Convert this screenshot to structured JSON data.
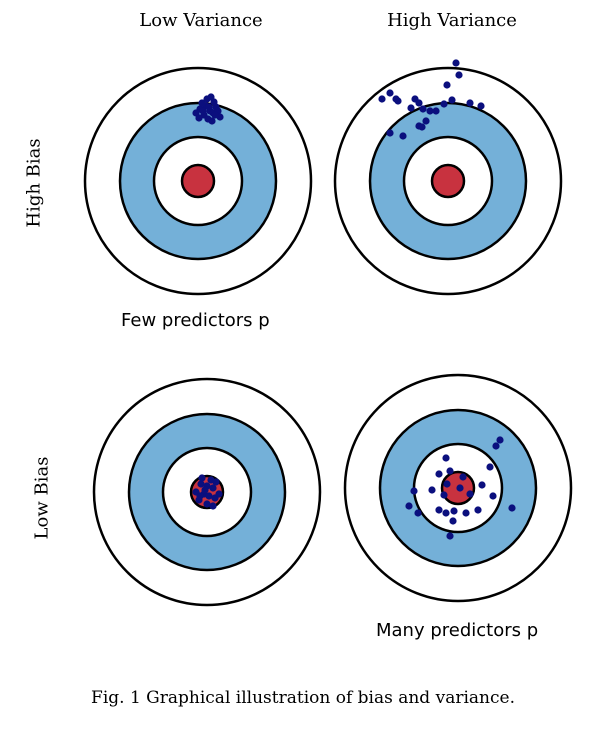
{
  "columns": {
    "left": "Low Variance",
    "right": "High Variance"
  },
  "rows": {
    "top": "High Bias",
    "bottom": "Low Bias"
  },
  "notes": {
    "few": "Few predictors p",
    "many": "Many predictors p"
  },
  "caption": "Fig. 1 Graphical illustration of bias and variance.",
  "colors": {
    "outer_ring": "#ffffff",
    "middle_ring": "#74b0d8",
    "inner_ring": "#ffffff",
    "bullseye": "#c8323f",
    "stroke": "#000000",
    "dots": "#0b0f7e"
  },
  "targets": [
    {
      "id": "high-bias-low-variance",
      "hits": [
        [
          8,
          -75
        ],
        [
          12,
          -70
        ],
        [
          2,
          -72
        ],
        [
          15,
          -68
        ],
        [
          6,
          -66
        ],
        [
          18,
          -74
        ],
        [
          10,
          -62
        ],
        [
          4,
          -78
        ],
        [
          14,
          -60
        ],
        [
          20,
          -70
        ],
        [
          -2,
          -68
        ],
        [
          9,
          -82
        ],
        [
          16,
          -79
        ],
        [
          1,
          -63
        ],
        [
          11,
          -74
        ],
        [
          22,
          -64
        ],
        [
          5,
          -70
        ],
        [
          17,
          -66
        ],
        [
          13,
          -84
        ]
      ]
    },
    {
      "id": "high-bias-high-variance",
      "hits": [
        [
          -50,
          -80
        ],
        [
          -52,
          -82
        ],
        [
          -58,
          -88
        ],
        [
          -66,
          -82
        ],
        [
          -33,
          -82
        ],
        [
          -29,
          -78
        ],
        [
          -37,
          -73
        ],
        [
          -25,
          -72
        ],
        [
          -18,
          -70
        ],
        [
          -12,
          -70
        ],
        [
          -22,
          -60
        ],
        [
          -29,
          -55
        ],
        [
          -58,
          -48
        ],
        [
          -45,
          -45
        ],
        [
          -26,
          -54
        ],
        [
          -4,
          -77
        ],
        [
          4,
          -81
        ],
        [
          22,
          -78
        ],
        [
          33,
          -75
        ],
        [
          -1,
          -96
        ],
        [
          8,
          -118
        ],
        [
          11,
          -106
        ]
      ]
    },
    {
      "id": "low-bias-low-variance",
      "hits": [
        [
          -6,
          -8
        ],
        [
          0,
          -6
        ],
        [
          6,
          -4
        ],
        [
          -3,
          2
        ],
        [
          2,
          4
        ],
        [
          8,
          6
        ],
        [
          -8,
          8
        ],
        [
          0,
          12
        ],
        [
          4,
          -12
        ],
        [
          -5,
          -14
        ],
        [
          9,
          -10
        ],
        [
          12,
          2
        ],
        [
          -11,
          0
        ],
        [
          -2,
          -2
        ],
        [
          6,
          14
        ],
        [
          -7,
          4
        ]
      ]
    },
    {
      "id": "low-bias-high-variance",
      "hits": [
        [
          -12,
          -30
        ],
        [
          -8,
          -17
        ],
        [
          -19,
          -14
        ],
        [
          -11,
          -4
        ],
        [
          -26,
          2
        ],
        [
          -14,
          7
        ],
        [
          -19,
          22
        ],
        [
          -12,
          25
        ],
        [
          2,
          0
        ],
        [
          5,
          -11
        ],
        [
          12,
          6
        ],
        [
          24,
          -3
        ],
        [
          20,
          22
        ],
        [
          8,
          25
        ],
        [
          -4,
          23
        ],
        [
          -40,
          25
        ],
        [
          -49,
          18
        ],
        [
          -44,
          3
        ],
        [
          32,
          -21
        ],
        [
          35,
          8
        ],
        [
          42,
          -48
        ],
        [
          38,
          -42
        ],
        [
          54,
          20
        ],
        [
          -8,
          48
        ],
        [
          -5,
          33
        ]
      ]
    }
  ]
}
